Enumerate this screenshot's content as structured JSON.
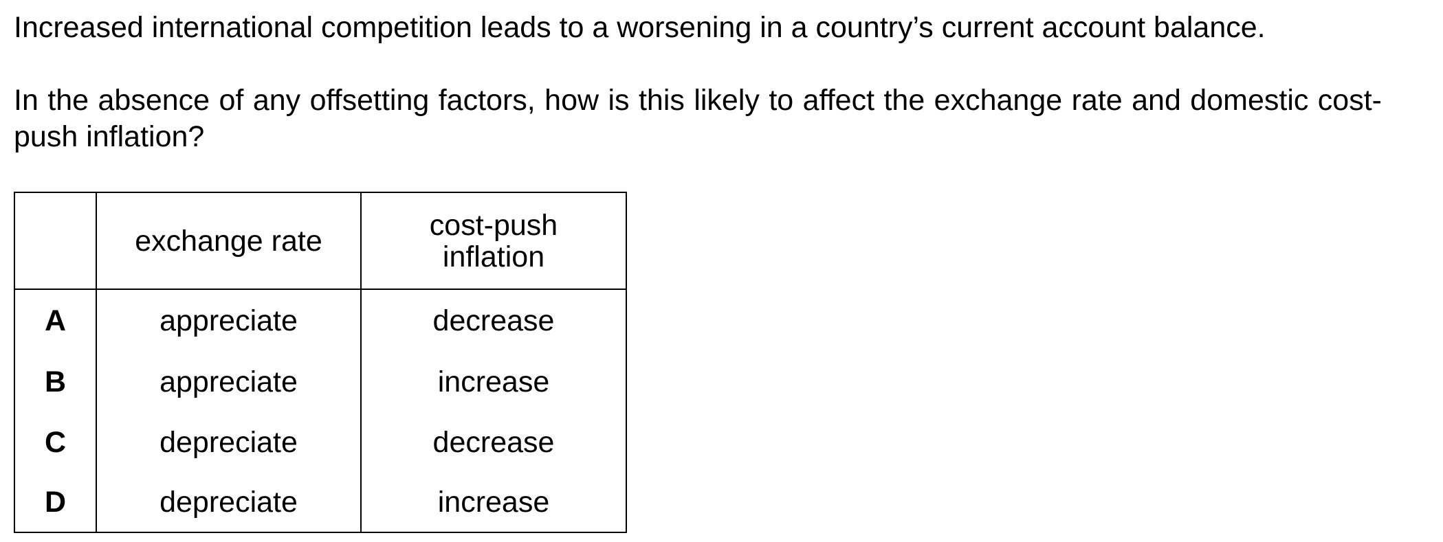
{
  "question": {
    "statement": "Increased international competition leads to a worsening in a country’s current account balance.",
    "prompt": "In the absence of any offsetting factors, how is this likely to affect the exchange rate and domestic cost-push inflation?"
  },
  "table": {
    "headers": {
      "letter": "",
      "exchange_rate": "exchange rate",
      "inflation_line1": "cost-push",
      "inflation_line2": "inflation"
    },
    "rows": [
      {
        "letter": "A",
        "exchange_rate": "appreciate",
        "inflation": "decrease"
      },
      {
        "letter": "B",
        "exchange_rate": "appreciate",
        "inflation": "increase"
      },
      {
        "letter": "C",
        "exchange_rate": "depreciate",
        "inflation": "decrease"
      },
      {
        "letter": "D",
        "exchange_rate": "depreciate",
        "inflation": "increase"
      }
    ]
  }
}
